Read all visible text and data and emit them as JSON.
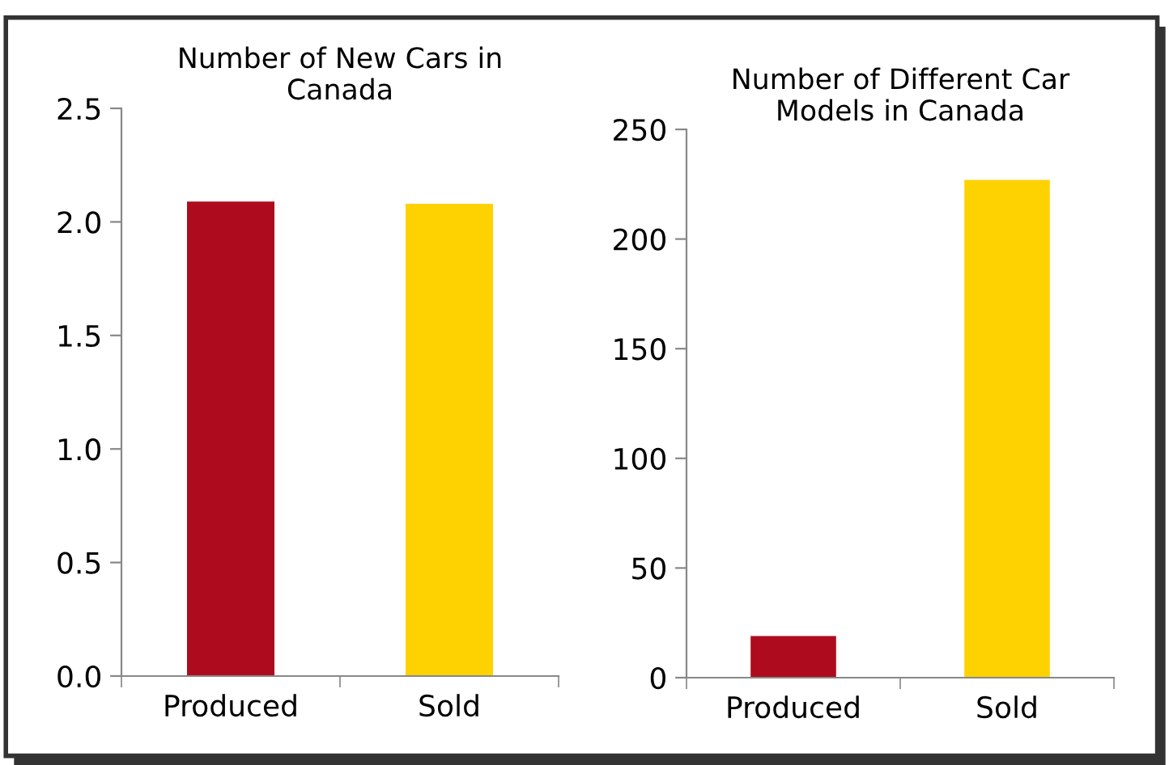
{
  "chart_data": [
    {
      "type": "bar",
      "title": "Number of New Cars in\nCanada",
      "categories": [
        "Produced",
        "Sold"
      ],
      "values": [
        2.09,
        2.08
      ],
      "colors": [
        "#ae0c1e",
        "#fed200"
      ],
      "ylim": [
        0,
        2.5
      ],
      "yticks": [
        {
          "value": 0,
          "label": "0.0"
        },
        {
          "value": 0.5,
          "label": "0.5"
        },
        {
          "value": 1,
          "label": "1.0"
        },
        {
          "value": 1.5,
          "label": "1.5"
        },
        {
          "value": 2,
          "label": "2.0"
        },
        {
          "value": 2.5,
          "label": "2.5"
        }
      ],
      "grid": false,
      "legend": false
    },
    {
      "type": "bar",
      "title": "Number of Different Car\nModels in Canada",
      "categories": [
        "Produced",
        "Sold"
      ],
      "values": [
        19,
        227
      ],
      "colors": [
        "#ae0c1e",
        "#fed200"
      ],
      "ylim": [
        0,
        250
      ],
      "yticks": [
        0,
        50,
        100,
        150,
        200,
        250
      ],
      "grid": false,
      "legend": false
    }
  ]
}
